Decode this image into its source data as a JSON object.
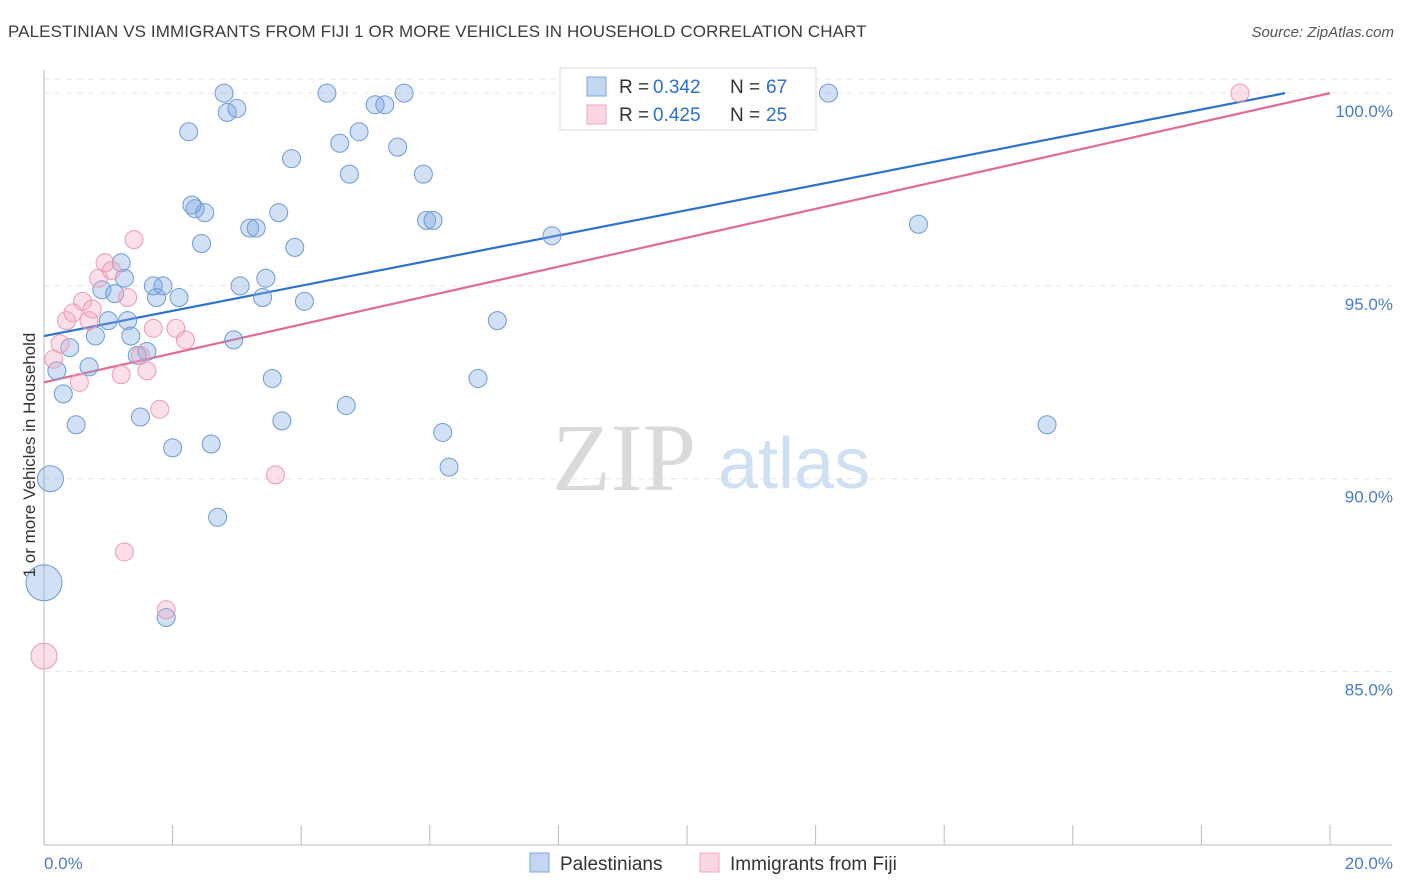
{
  "title": "PALESTINIAN VS IMMIGRANTS FROM FIJI 1 OR MORE VEHICLES IN HOUSEHOLD CORRELATION CHART",
  "source": "Source: ZipAtlas.com",
  "watermark": {
    "zip": "ZIP",
    "atlas": "atlas"
  },
  "legend_box": [
    {
      "r_label": "R = ",
      "r_value": "0.342",
      "n_label": "N = ",
      "n_value": "67",
      "color": "#7aa7e0"
    },
    {
      "r_label": "R = ",
      "r_value": "0.425",
      "n_label": "N = ",
      "n_value": "25",
      "color": "#f3a5bf"
    }
  ],
  "chart_data": {
    "type": "scatter",
    "title": "PALESTINIAN VS IMMIGRANTS FROM FIJI 1 OR MORE VEHICLES IN HOUSEHOLD CORRELATION CHART",
    "xlabel": "",
    "ylabel": "1 or more Vehicles in Household",
    "xlim": [
      0,
      20
    ],
    "ylim": [
      80.5,
      100.6
    ],
    "x_tick_labels": [
      "0.0%",
      "20.0%"
    ],
    "y_ticks": [
      85,
      90,
      95,
      100
    ],
    "y_tick_labels": [
      "85.0%",
      "90.0%",
      "95.0%",
      "100.0%"
    ],
    "grid": true,
    "legend_position": "bottom",
    "series": [
      {
        "name": "Palestinians",
        "color": "#7aa7e0",
        "trend": {
          "x": [
            0,
            19.3
          ],
          "y": [
            93.7,
            100.0
          ]
        },
        "points": [
          {
            "x": 0.1,
            "y": 90.0,
            "s": 2
          },
          {
            "x": 0.0,
            "y": 87.3,
            "s": 3
          },
          {
            "x": 0.2,
            "y": 92.8,
            "s": 1
          },
          {
            "x": 0.3,
            "y": 92.2,
            "s": 1
          },
          {
            "x": 0.4,
            "y": 93.4,
            "s": 1
          },
          {
            "x": 0.5,
            "y": 91.4,
            "s": 1
          },
          {
            "x": 0.7,
            "y": 92.9,
            "s": 1
          },
          {
            "x": 0.8,
            "y": 93.7,
            "s": 1
          },
          {
            "x": 0.9,
            "y": 94.9,
            "s": 1
          },
          {
            "x": 1.0,
            "y": 94.1,
            "s": 1
          },
          {
            "x": 1.1,
            "y": 94.8,
            "s": 1
          },
          {
            "x": 1.2,
            "y": 95.6,
            "s": 1
          },
          {
            "x": 1.3,
            "y": 94.1,
            "s": 1
          },
          {
            "x": 1.35,
            "y": 93.7,
            "s": 1
          },
          {
            "x": 1.45,
            "y": 93.2,
            "s": 1
          },
          {
            "x": 1.5,
            "y": 91.6,
            "s": 1
          },
          {
            "x": 1.6,
            "y": 93.3,
            "s": 1
          },
          {
            "x": 1.7,
            "y": 95.0,
            "s": 1
          },
          {
            "x": 1.75,
            "y": 94.7,
            "s": 1
          },
          {
            "x": 1.85,
            "y": 95.0,
            "s": 1
          },
          {
            "x": 1.9,
            "y": 86.4,
            "s": 1
          },
          {
            "x": 2.0,
            "y": 90.8,
            "s": 1
          },
          {
            "x": 2.1,
            "y": 94.7,
            "s": 1
          },
          {
            "x": 2.25,
            "y": 99.0,
            "s": 1
          },
          {
            "x": 2.35,
            "y": 97.0,
            "s": 1
          },
          {
            "x": 2.45,
            "y": 96.1,
            "s": 1
          },
          {
            "x": 2.5,
            "y": 96.9,
            "s": 1
          },
          {
            "x": 2.6,
            "y": 90.9,
            "s": 1
          },
          {
            "x": 2.7,
            "y": 89.0,
            "s": 1
          },
          {
            "x": 2.8,
            "y": 100.0,
            "s": 1
          },
          {
            "x": 2.85,
            "y": 99.5,
            "s": 1
          },
          {
            "x": 2.95,
            "y": 93.6,
            "s": 1
          },
          {
            "x": 3.05,
            "y": 95.0,
            "s": 1
          },
          {
            "x": 3.2,
            "y": 96.5,
            "s": 1
          },
          {
            "x": 3.3,
            "y": 96.5,
            "s": 1
          },
          {
            "x": 3.4,
            "y": 94.7,
            "s": 1
          },
          {
            "x": 3.45,
            "y": 95.2,
            "s": 1
          },
          {
            "x": 3.55,
            "y": 92.6,
            "s": 1
          },
          {
            "x": 3.65,
            "y": 96.9,
            "s": 1
          },
          {
            "x": 3.7,
            "y": 91.5,
            "s": 1
          },
          {
            "x": 3.85,
            "y": 98.3,
            "s": 1
          },
          {
            "x": 3.9,
            "y": 96.0,
            "s": 1
          },
          {
            "x": 4.05,
            "y": 94.6,
            "s": 1
          },
          {
            "x": 4.4,
            "y": 100.0,
            "s": 1
          },
          {
            "x": 4.6,
            "y": 98.7,
            "s": 1
          },
          {
            "x": 4.7,
            "y": 91.9,
            "s": 1
          },
          {
            "x": 4.75,
            "y": 97.9,
            "s": 1
          },
          {
            "x": 4.9,
            "y": 99.0,
            "s": 1
          },
          {
            "x": 5.15,
            "y": 99.7,
            "s": 1
          },
          {
            "x": 5.3,
            "y": 99.7,
            "s": 1
          },
          {
            "x": 5.5,
            "y": 98.6,
            "s": 1
          },
          {
            "x": 5.6,
            "y": 100.0,
            "s": 1
          },
          {
            "x": 5.9,
            "y": 97.9,
            "s": 1
          },
          {
            "x": 5.95,
            "y": 96.7,
            "s": 1
          },
          {
            "x": 6.05,
            "y": 96.7,
            "s": 1
          },
          {
            "x": 6.2,
            "y": 91.2,
            "s": 1
          },
          {
            "x": 6.3,
            "y": 90.3,
            "s": 1
          },
          {
            "x": 6.75,
            "y": 92.6,
            "s": 1
          },
          {
            "x": 7.05,
            "y": 94.1,
            "s": 1
          },
          {
            "x": 7.9,
            "y": 96.3,
            "s": 1
          },
          {
            "x": 9.2,
            "y": 100.0,
            "s": 1
          },
          {
            "x": 12.2,
            "y": 100.0,
            "s": 1
          },
          {
            "x": 13.6,
            "y": 96.6,
            "s": 1
          },
          {
            "x": 15.6,
            "y": 91.4,
            "s": 1
          },
          {
            "x": 2.3,
            "y": 97.1,
            "s": 1
          },
          {
            "x": 3.0,
            "y": 99.6,
            "s": 1
          },
          {
            "x": 1.25,
            "y": 95.2,
            "s": 1
          }
        ]
      },
      {
        "name": "Immigrants from Fiji",
        "color": "#f3a5bf",
        "trend": {
          "x": [
            0,
            20
          ],
          "y": [
            92.5,
            100.0
          ]
        },
        "points": [
          {
            "x": 0.0,
            "y": 85.4,
            "s": 2
          },
          {
            "x": 0.15,
            "y": 93.1,
            "s": 1
          },
          {
            "x": 0.25,
            "y": 93.5,
            "s": 1
          },
          {
            "x": 0.35,
            "y": 94.1,
            "s": 1
          },
          {
            "x": 0.45,
            "y": 94.3,
            "s": 1
          },
          {
            "x": 0.55,
            "y": 92.5,
            "s": 1
          },
          {
            "x": 0.6,
            "y": 94.6,
            "s": 1
          },
          {
            "x": 0.7,
            "y": 94.1,
            "s": 1
          },
          {
            "x": 0.75,
            "y": 94.4,
            "s": 1
          },
          {
            "x": 0.85,
            "y": 95.2,
            "s": 1
          },
          {
            "x": 0.95,
            "y": 95.6,
            "s": 1
          },
          {
            "x": 1.05,
            "y": 95.4,
            "s": 1
          },
          {
            "x": 1.2,
            "y": 92.7,
            "s": 1
          },
          {
            "x": 1.25,
            "y": 88.1,
            "s": 1
          },
          {
            "x": 1.3,
            "y": 94.7,
            "s": 1
          },
          {
            "x": 1.4,
            "y": 96.2,
            "s": 1
          },
          {
            "x": 1.5,
            "y": 93.2,
            "s": 1
          },
          {
            "x": 1.6,
            "y": 92.8,
            "s": 1
          },
          {
            "x": 1.7,
            "y": 93.9,
            "s": 1
          },
          {
            "x": 1.8,
            "y": 91.8,
            "s": 1
          },
          {
            "x": 1.9,
            "y": 86.6,
            "s": 1
          },
          {
            "x": 2.05,
            "y": 93.9,
            "s": 1
          },
          {
            "x": 2.2,
            "y": 93.6,
            "s": 1
          },
          {
            "x": 3.6,
            "y": 90.1,
            "s": 1
          },
          {
            "x": 18.6,
            "y": 100.0,
            "s": 1
          }
        ]
      }
    ]
  }
}
